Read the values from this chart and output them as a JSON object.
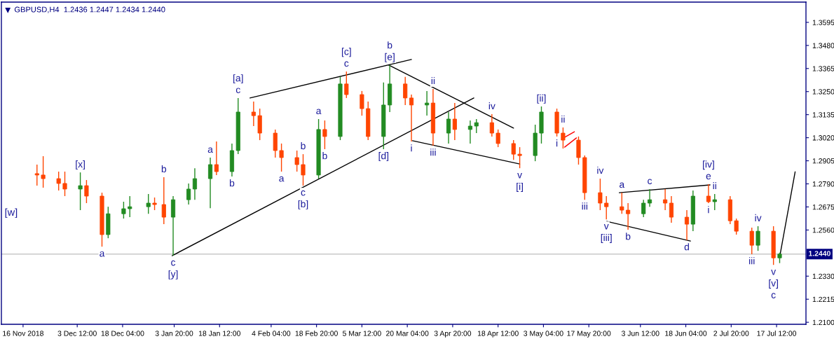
{
  "chart_data": {
    "type": "candlestick",
    "title": "GBPUSD,H4  1.2436 1.2447 1.2434 1.2440",
    "x": [
      "2018-11-20T12:00",
      "2018-11-22T12:00",
      "2018-11-27T12:00",
      "2018-11-29T12:00",
      "2018-12-04T12:00",
      "2018-12-06T12:00",
      "2018-12-11T12:00",
      "2018-12-13T12:00",
      "2018-12-18T12:00",
      "2018-12-20T12:00",
      "2018-12-26T12:00",
      "2018-12-28T12:00",
      "2018-12-31T12:00",
      "2019-01-03T12:00",
      "2019-01-08T12:00",
      "2019-01-10T12:00",
      "2019-01-15T12:00",
      "2019-01-17T12:00",
      "2019-01-22T12:00",
      "2019-01-24T12:00",
      "2019-01-29T12:00",
      "2019-01-31T12:00",
      "2019-02-05T12:00",
      "2019-02-07T12:00",
      "2019-02-12T12:00",
      "2019-02-14T12:00",
      "2019-02-19T12:00",
      "2019-02-21T12:00",
      "2019-02-26T12:00",
      "2019-02-28T12:00",
      "2019-03-05T12:00",
      "2019-03-07T12:00",
      "2019-03-12T12:00",
      "2019-03-14T12:00",
      "2019-03-19T12:00",
      "2019-03-21T12:00",
      "2019-03-26T12:00",
      "2019-03-28T12:00",
      "2019-04-02T12:00",
      "2019-04-04T12:00",
      "2019-04-09T12:00",
      "2019-04-11T12:00",
      "2019-04-16T12:00",
      "2019-04-18T12:00",
      "2019-04-23T12:00",
      "2019-04-25T12:00",
      "2019-04-30T12:00",
      "2019-05-02T12:00",
      "2019-05-07T12:00",
      "2019-05-09T12:00",
      "2019-05-14T12:00",
      "2019-05-16T12:00",
      "2019-05-21T12:00",
      "2019-05-23T12:00",
      "2019-05-28T12:00",
      "2019-05-30T12:00",
      "2019-06-04T12:00",
      "2019-06-06T12:00",
      "2019-06-11T12:00",
      "2019-06-13T12:00",
      "2019-06-18T12:00",
      "2019-06-20T12:00",
      "2019-06-25T12:00",
      "2019-06-27T12:00",
      "2019-07-02T12:00",
      "2019-07-04T12:00",
      "2019-07-09T12:00",
      "2019-07-11T12:00",
      "2019-07-16T12:00",
      "2019-07-18T12:00"
    ],
    "ohlc": [
      [
        1.2841,
        1.2886,
        1.2781,
        1.2834
      ],
      [
        1.2834,
        1.2928,
        1.2771,
        1.2816
      ],
      [
        1.2816,
        1.2851,
        1.2757,
        1.2792
      ],
      [
        1.2792,
        1.2851,
        1.2729,
        1.2764
      ],
      [
        1.2764,
        1.2847,
        1.2659,
        1.2781
      ],
      [
        1.2781,
        1.2809,
        1.2694,
        1.2729
      ],
      [
        1.2729,
        1.2746,
        1.2477,
        1.2537
      ],
      [
        1.2537,
        1.2676,
        1.2519,
        1.2641
      ],
      [
        1.2641,
        1.2701,
        1.2617,
        1.2666
      ],
      [
        1.2666,
        1.2729,
        1.2624,
        1.2676
      ],
      [
        1.2676,
        1.2739,
        1.2641,
        1.2694
      ],
      [
        1.2694,
        1.2722,
        1.2659,
        1.2687
      ],
      [
        1.2687,
        1.2823,
        1.2589,
        1.2624
      ],
      [
        1.2624,
        1.2729,
        1.2432,
        1.2711
      ],
      [
        1.2711,
        1.2792,
        1.2687,
        1.2764
      ],
      [
        1.2764,
        1.2868,
        1.2711,
        1.2816
      ],
      [
        1.2816,
        1.2921,
        1.2669,
        1.2886
      ],
      [
        1.2886,
        1.3001,
        1.2834,
        1.2851
      ],
      [
        1.2851,
        1.2991,
        1.2827,
        1.2956
      ],
      [
        1.2956,
        1.3218,
        1.2938,
        1.3148
      ],
      [
        1.3148,
        1.32,
        1.3078,
        1.313
      ],
      [
        1.313,
        1.3165,
        1.3008,
        1.3043
      ],
      [
        1.3043,
        1.3061,
        1.2921,
        1.2956
      ],
      [
        1.2956,
        1.2991,
        1.2851,
        1.2921
      ],
      [
        1.2921,
        1.2956,
        1.2851,
        1.2886
      ],
      [
        1.2886,
        1.2938,
        1.2781,
        1.2834
      ],
      [
        1.2834,
        1.3113,
        1.2816,
        1.3061
      ],
      [
        1.3061,
        1.3106,
        1.2963,
        1.3026
      ],
      [
        1.3026,
        1.3323,
        1.3008,
        1.3288
      ],
      [
        1.3288,
        1.335,
        1.3218,
        1.3235
      ],
      [
        1.3235,
        1.3253,
        1.313,
        1.3165
      ],
      [
        1.3165,
        1.32,
        1.3008,
        1.3026
      ],
      [
        1.3026,
        1.3295,
        1.2963,
        1.3183
      ],
      [
        1.3183,
        1.3382,
        1.3148,
        1.3288
      ],
      [
        1.3288,
        1.3323,
        1.3183,
        1.3218
      ],
      [
        1.3218,
        1.3235,
        1.3001,
        1.3183
      ],
      [
        1.3183,
        1.3253,
        1.313,
        1.3193
      ],
      [
        1.3193,
        1.3263,
        1.298,
        1.3043
      ],
      [
        1.3043,
        1.3148,
        1.2991,
        1.3113
      ],
      [
        1.3113,
        1.3193,
        1.3008,
        1.3061
      ],
      [
        1.3061,
        1.3106,
        1.2991,
        1.3078
      ],
      [
        1.3078,
        1.3113,
        1.3043,
        1.3095
      ],
      [
        1.3095,
        1.3137,
        1.3026,
        1.3043
      ],
      [
        1.3043,
        1.3061,
        1.2973,
        1.2991
      ],
      [
        1.2991,
        1.3008,
        1.291,
        1.2938
      ],
      [
        1.2938,
        1.2973,
        1.2868,
        1.2931
      ],
      [
        1.2931,
        1.3085,
        1.2903,
        1.3043
      ],
      [
        1.3043,
        1.3176,
        1.2991,
        1.3148
      ],
      [
        1.3148,
        1.3165,
        1.3026,
        1.3043
      ],
      [
        1.3043,
        1.3071,
        1.2966,
        1.3008
      ],
      [
        1.3008,
        1.3026,
        1.2886,
        1.2921
      ],
      [
        1.2921,
        1.2931,
        1.2711,
        1.2746
      ],
      [
        1.2746,
        1.2816,
        1.2659,
        1.2694
      ],
      [
        1.2694,
        1.2729,
        1.2613,
        1.2676
      ],
      [
        1.2676,
        1.2746,
        1.2641,
        1.2659
      ],
      [
        1.2659,
        1.2694,
        1.2561,
        1.2641
      ],
      [
        1.2641,
        1.2711,
        1.2624,
        1.2694
      ],
      [
        1.2694,
        1.2764,
        1.2676,
        1.2711
      ],
      [
        1.2711,
        1.2764,
        1.2659,
        1.2694
      ],
      [
        1.2694,
        1.2729,
        1.2596,
        1.2624
      ],
      [
        1.2624,
        1.2659,
        1.2509,
        1.2589
      ],
      [
        1.2589,
        1.2757,
        1.2554,
        1.2729
      ],
      [
        1.2729,
        1.2788,
        1.2694,
        1.2701
      ],
      [
        1.2701,
        1.2739,
        1.2659,
        1.2711
      ],
      [
        1.2711,
        1.2729,
        1.2589,
        1.2606
      ],
      [
        1.2606,
        1.2617,
        1.2537,
        1.2554
      ],
      [
        1.2554,
        1.2572,
        1.2439,
        1.2484
      ],
      [
        1.2484,
        1.2579,
        1.2456,
        1.2554
      ],
      [
        1.2554,
        1.2579,
        1.2386,
        1.2421
      ],
      [
        1.2421,
        1.2447,
        1.2395,
        1.244
      ]
    ],
    "colors": [
      "#ff4500",
      "#ff4500",
      "#ff4500",
      "#ff4500",
      "#228b22",
      "#ff4500",
      "#ff4500",
      "#228b22",
      "#228b22",
      "#228b22",
      "#228b22",
      "#ff4500",
      "#ff4500",
      "#228b22",
      "#228b22",
      "#228b22",
      "#228b22",
      "#ff4500",
      "#228b22",
      "#228b22",
      "#ff4500",
      "#ff4500",
      "#ff4500",
      "#ff4500",
      "#ff4500",
      "#ff4500",
      "#228b22",
      "#ff4500",
      "#228b22",
      "#ff4500",
      "#ff4500",
      "#ff4500",
      "#228b22",
      "#228b22",
      "#ff4500",
      "#ff4500",
      "#228b22",
      "#ff4500",
      "#228b22",
      "#ff4500",
      "#228b22",
      "#228b22",
      "#ff4500",
      "#ff4500",
      "#ff4500",
      "#ff4500",
      "#228b22",
      "#228b22",
      "#ff4500",
      "#ff4500",
      "#ff4500",
      "#ff4500",
      "#ff4500",
      "#ff4500",
      "#ff4500",
      "#ff4500",
      "#228b22",
      "#228b22",
      "#ff4500",
      "#ff4500",
      "#ff4500",
      "#228b22",
      "#ff4500",
      "#228b22",
      "#ff4500",
      "#ff4500",
      "#ff4500",
      "#228b22",
      "#ff4500",
      "#228b22"
    ],
    "series": [
      {
        "type": "line",
        "color": "#000000",
        "x": [
          "2019-01-03T04:00",
          "2019-04-10T16:00"
        ],
        "values": [
          1.2432,
          1.3218
        ]
      },
      {
        "type": "line",
        "color": "#000000",
        "x": [
          "2019-01-28T08:00",
          "2019-03-21T12:00"
        ],
        "values": [
          1.3218,
          1.341
        ]
      },
      {
        "type": "line",
        "color": "#000000",
        "x": [
          "2019-03-14T04:00",
          "2019-04-23T12:00"
        ],
        "values": [
          1.3382,
          1.3068
        ]
      },
      {
        "type": "line",
        "color": "#000000",
        "x": [
          "2019-03-21T20:00",
          "2019-04-25T12:00"
        ],
        "values": [
          1.3005,
          1.2889
        ]
      },
      {
        "type": "line",
        "color": "#ff0000",
        "x": [
          "2019-05-09T16:00",
          "2019-05-13T04:00"
        ],
        "values": [
          1.3019,
          1.305
        ]
      },
      {
        "type": "line",
        "color": "#ff0000",
        "x": [
          "2019-05-10T00:00",
          "2019-05-13T20:00"
        ],
        "values": [
          1.2973,
          1.3019
        ]
      },
      {
        "type": "line",
        "color": "#000000",
        "x": [
          "2019-05-27T16:00",
          "2019-06-26T00:00"
        ],
        "values": [
          1.2746,
          1.2785
        ]
      },
      {
        "type": "line",
        "color": "#000000",
        "x": [
          "2019-05-23T16:00",
          "2019-06-19T16:00"
        ],
        "values": [
          1.2603,
          1.2505
        ]
      },
      {
        "type": "line",
        "color": "#000000",
        "x": [
          "2019-07-18T16:00",
          "2019-07-23T12:00"
        ],
        "values": [
          1.244,
          1.285
        ]
      }
    ],
    "ref_lines": [
      {
        "axis": "y",
        "value": 1.244,
        "label": "1.2440",
        "color": "#c8c8c8"
      }
    ],
    "annotations": [
      "[w]",
      {
        "text": "[x]",
        "x": "2018-12-04T12:00",
        "y": 1.2847
      },
      {
        "text": "a",
        "x": "2018-12-11T12:00",
        "y": 1.2477
      },
      {
        "text": "b",
        "x": "2018-12-31T12:00",
        "y": 1.2823
      },
      {
        "text": "c",
        "x": "2019-01-03T12:00",
        "y": 1.2432
      },
      {
        "text": "[y]",
        "x": "2019-01-03T12:00",
        "y": 1.2432
      },
      {
        "text": "a",
        "x": "2019-01-15T12:00",
        "y": 1.2921
      },
      {
        "text": "b",
        "x": "2019-01-22T12:00",
        "y": 1.2827
      },
      {
        "text": "c",
        "x": "2019-01-24T12:00",
        "y": 1.3218
      },
      {
        "text": "[a]",
        "x": "2019-01-24T12:00",
        "y": 1.3218
      },
      {
        "text": "a",
        "x": "2019-02-07T12:00",
        "y": 1.2851
      },
      {
        "text": "b",
        "x": "2019-02-14T12:00",
        "y": 1.2938
      },
      {
        "text": "c",
        "x": "2019-02-14T12:00",
        "y": 1.2781
      },
      {
        "text": "[b]",
        "x": "2019-02-14T12:00",
        "y": 1.2781
      },
      {
        "text": "a",
        "x": "2019-02-19T12:00",
        "y": 1.3113
      },
      {
        "text": "b",
        "x": "2019-02-21T12:00",
        "y": 1.2963
      },
      {
        "text": "c",
        "x": "2019-02-28T12:00",
        "y": 1.335
      },
      {
        "text": "[c]",
        "x": "2019-02-28T12:00",
        "y": 1.335
      },
      {
        "text": "[d]",
        "x": "2019-03-12T12:00",
        "y": 1.2963
      },
      {
        "text": "[e]",
        "x": "2019-03-14T12:00",
        "y": 1.3382
      },
      {
        "text": "b",
        "x": "2019-03-14T12:00",
        "y": 1.3382
      },
      {
        "text": "i",
        "x": "2019-03-21T12:00",
        "y": 1.3001
      },
      {
        "text": "ii",
        "x": "2019-03-28T12:00",
        "y": 1.3263
      },
      {
        "text": "iii",
        "x": "2019-03-28T12:00",
        "y": 1.298
      },
      {
        "text": "iv",
        "x": "2019-04-16T12:00",
        "y": 1.3137
      },
      {
        "text": "v",
        "x": "2019-04-25T12:00",
        "y": 1.2868
      },
      {
        "text": "[i]",
        "x": "2019-04-25T12:00",
        "y": 1.2868
      },
      {
        "text": "[ii]",
        "x": "2019-05-02T12:00",
        "y": 1.3176
      },
      {
        "text": "i",
        "x": "2019-05-07T12:00",
        "y": 1.3026
      },
      {
        "text": "ii",
        "x": "2019-05-09T12:00",
        "y": 1.3071
      },
      {
        "text": "iii",
        "x": "2019-05-16T12:00",
        "y": 1.2711
      },
      {
        "text": "iv",
        "x": "2019-05-21T12:00",
        "y": 1.2816
      },
      {
        "text": "v",
        "x": "2019-05-23T12:00",
        "y": 1.2613
      },
      {
        "text": "[iii]",
        "x": "2019-05-23T12:00",
        "y": 1.2613
      },
      {
        "text": "a",
        "x": "2019-05-28T12:00",
        "y": 1.2746
      },
      {
        "text": "b",
        "x": "2019-05-30T12:00",
        "y": 1.2561
      },
      {
        "text": "c",
        "x": "2019-06-06T12:00",
        "y": 1.2764
      },
      {
        "text": "d",
        "x": "2019-06-18T12:00",
        "y": 1.2509
      },
      {
        "text": "e",
        "x": "2019-06-25T12:00",
        "y": 1.2788
      },
      {
        "text": "[iv]",
        "x": "2019-06-25T12:00",
        "y": 1.2788
      },
      {
        "text": "i",
        "x": "2019-06-25T12:00",
        "y": 1.2694
      },
      {
        "text": "ii",
        "x": "2019-06-27T12:00",
        "y": 1.2739
      },
      {
        "text": "iii",
        "x": "2019-07-09T12:00",
        "y": 1.2439
      },
      {
        "text": "iv",
        "x": "2019-07-11T12:00",
        "y": 1.2579
      },
      {
        "text": "v",
        "x": "2019-07-16T12:00",
        "y": 1.2386
      },
      {
        "text": "[v]",
        "x": "2019-07-16T12:00",
        "y": 1.2386
      },
      {
        "text": "c",
        "x": "2019-07-16T12:00",
        "y": 1.2386
      }
    ],
    "xlim": [
      "2018-11-09T00:00",
      "2019-07-27T00:00"
    ],
    "xticks": [
      {
        "value": "2018-11-16T00:00",
        "label": "16 Nov 2018"
      },
      {
        "value": "2018-12-03T12:00",
        "label": "3 Dec 12:00"
      },
      {
        "value": "2018-12-18T04:00",
        "label": "18 Dec 04:00"
      },
      {
        "value": "2019-01-03T20:00",
        "label": "3 Jan 20:00"
      },
      {
        "value": "2019-01-18T12:00",
        "label": "18 Jan 12:00"
      },
      {
        "value": "2019-02-04T04:00",
        "label": "4 Feb 04:00"
      },
      {
        "value": "2019-02-18T20:00",
        "label": "18 Feb 20:00"
      },
      {
        "value": "2019-03-05T12:00",
        "label": "5 Mar 12:00"
      },
      {
        "value": "2019-03-20T04:00",
        "label": "20 Mar 04:00"
      },
      {
        "value": "2019-04-03T20:00",
        "label": "3 Apr 20:00"
      },
      {
        "value": "2019-04-18T12:00",
        "label": "18 Apr 12:00"
      },
      {
        "value": "2019-05-03T04:00",
        "label": "3 May 04:00"
      },
      {
        "value": "2019-05-17T20:00",
        "label": "17 May 20:00"
      },
      {
        "value": "2019-06-03T12:00",
        "label": "3 Jun 12:00"
      },
      {
        "value": "2019-06-18T04:00",
        "label": "18 Jun 04:00"
      },
      {
        "value": "2019-07-02T20:00",
        "label": "2 Jul 20:00"
      },
      {
        "value": "2019-07-17T12:00",
        "label": "17 Jul 12:00"
      }
    ],
    "ylim": [
      1.209,
      1.3696
    ],
    "yticks": [
      {
        "value": 1.21,
        "label": "1.2100"
      },
      1.2215,
      {
        "value": 1.233,
        "label": "1.2330"
      },
      {
        "value": 1.256,
        "label": "1.2560"
      },
      1.2675,
      {
        "value": 1.279,
        "label": "1.2790"
      },
      1.2905,
      {
        "value": 1.302,
        "label": "1.3020"
      },
      1.3135,
      {
        "value": 1.325,
        "label": "1.3250"
      },
      1.3365,
      {
        "value": 1.348,
        "label": "1.3480"
      },
      1.3595
    ],
    "grid": false,
    "legend": false
  }
}
